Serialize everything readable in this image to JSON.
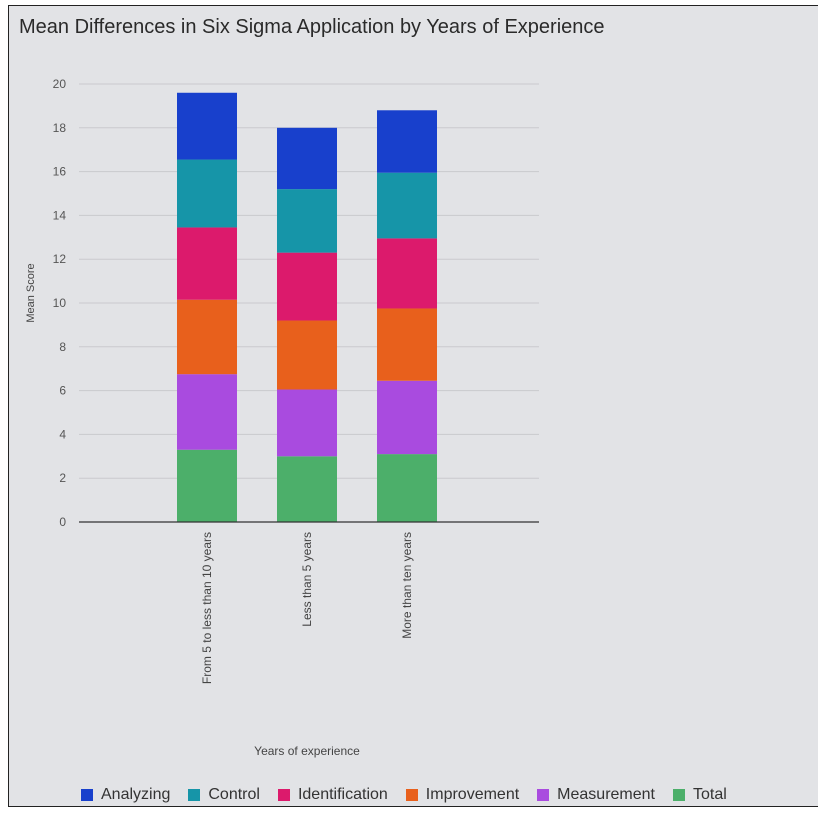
{
  "chart_data": {
    "type": "bar",
    "stacked": true,
    "title": "Mean Differences in Six Sigma Application by Years of Experience",
    "xlabel": "Years of experience",
    "ylabel": "Mean Score",
    "ylim": [
      0,
      20
    ],
    "yticks": [
      "0",
      "2",
      "4",
      "6",
      "8",
      "10",
      "12",
      "14",
      "16",
      "18",
      "20"
    ],
    "grid": true,
    "legend_position": "bottom",
    "categories": [
      "From 5 to less than 10 years",
      "Less than 5 years",
      "More than ten years"
    ],
    "series": [
      {
        "name": "Total",
        "color": "#4caf6a",
        "values": [
          3.3,
          3.0,
          3.1
        ]
      },
      {
        "name": "Measurement",
        "color": "#a94bdf",
        "values": [
          3.45,
          3.05,
          3.35
        ]
      },
      {
        "name": "Improvement",
        "color": "#e8601c",
        "values": [
          3.4,
          3.15,
          3.3
        ]
      },
      {
        "name": "Identification",
        "color": "#dc1a6c",
        "values": [
          3.3,
          3.1,
          3.2
        ]
      },
      {
        "name": "Control",
        "color": "#1695a8",
        "values": [
          3.1,
          2.9,
          3.0
        ]
      },
      {
        "name": "Analyzing",
        "color": "#1840cc",
        "values": [
          3.05,
          2.8,
          2.85
        ]
      }
    ]
  },
  "legend": [
    {
      "name": "Analyzing",
      "color": "#1840cc"
    },
    {
      "name": "Control",
      "color": "#1695a8"
    },
    {
      "name": "Identification",
      "color": "#dc1a6c"
    },
    {
      "name": "Improvement",
      "color": "#e8601c"
    },
    {
      "name": "Measurement",
      "color": "#a94bdf"
    },
    {
      "name": "Total",
      "color": "#4caf6a"
    }
  ]
}
